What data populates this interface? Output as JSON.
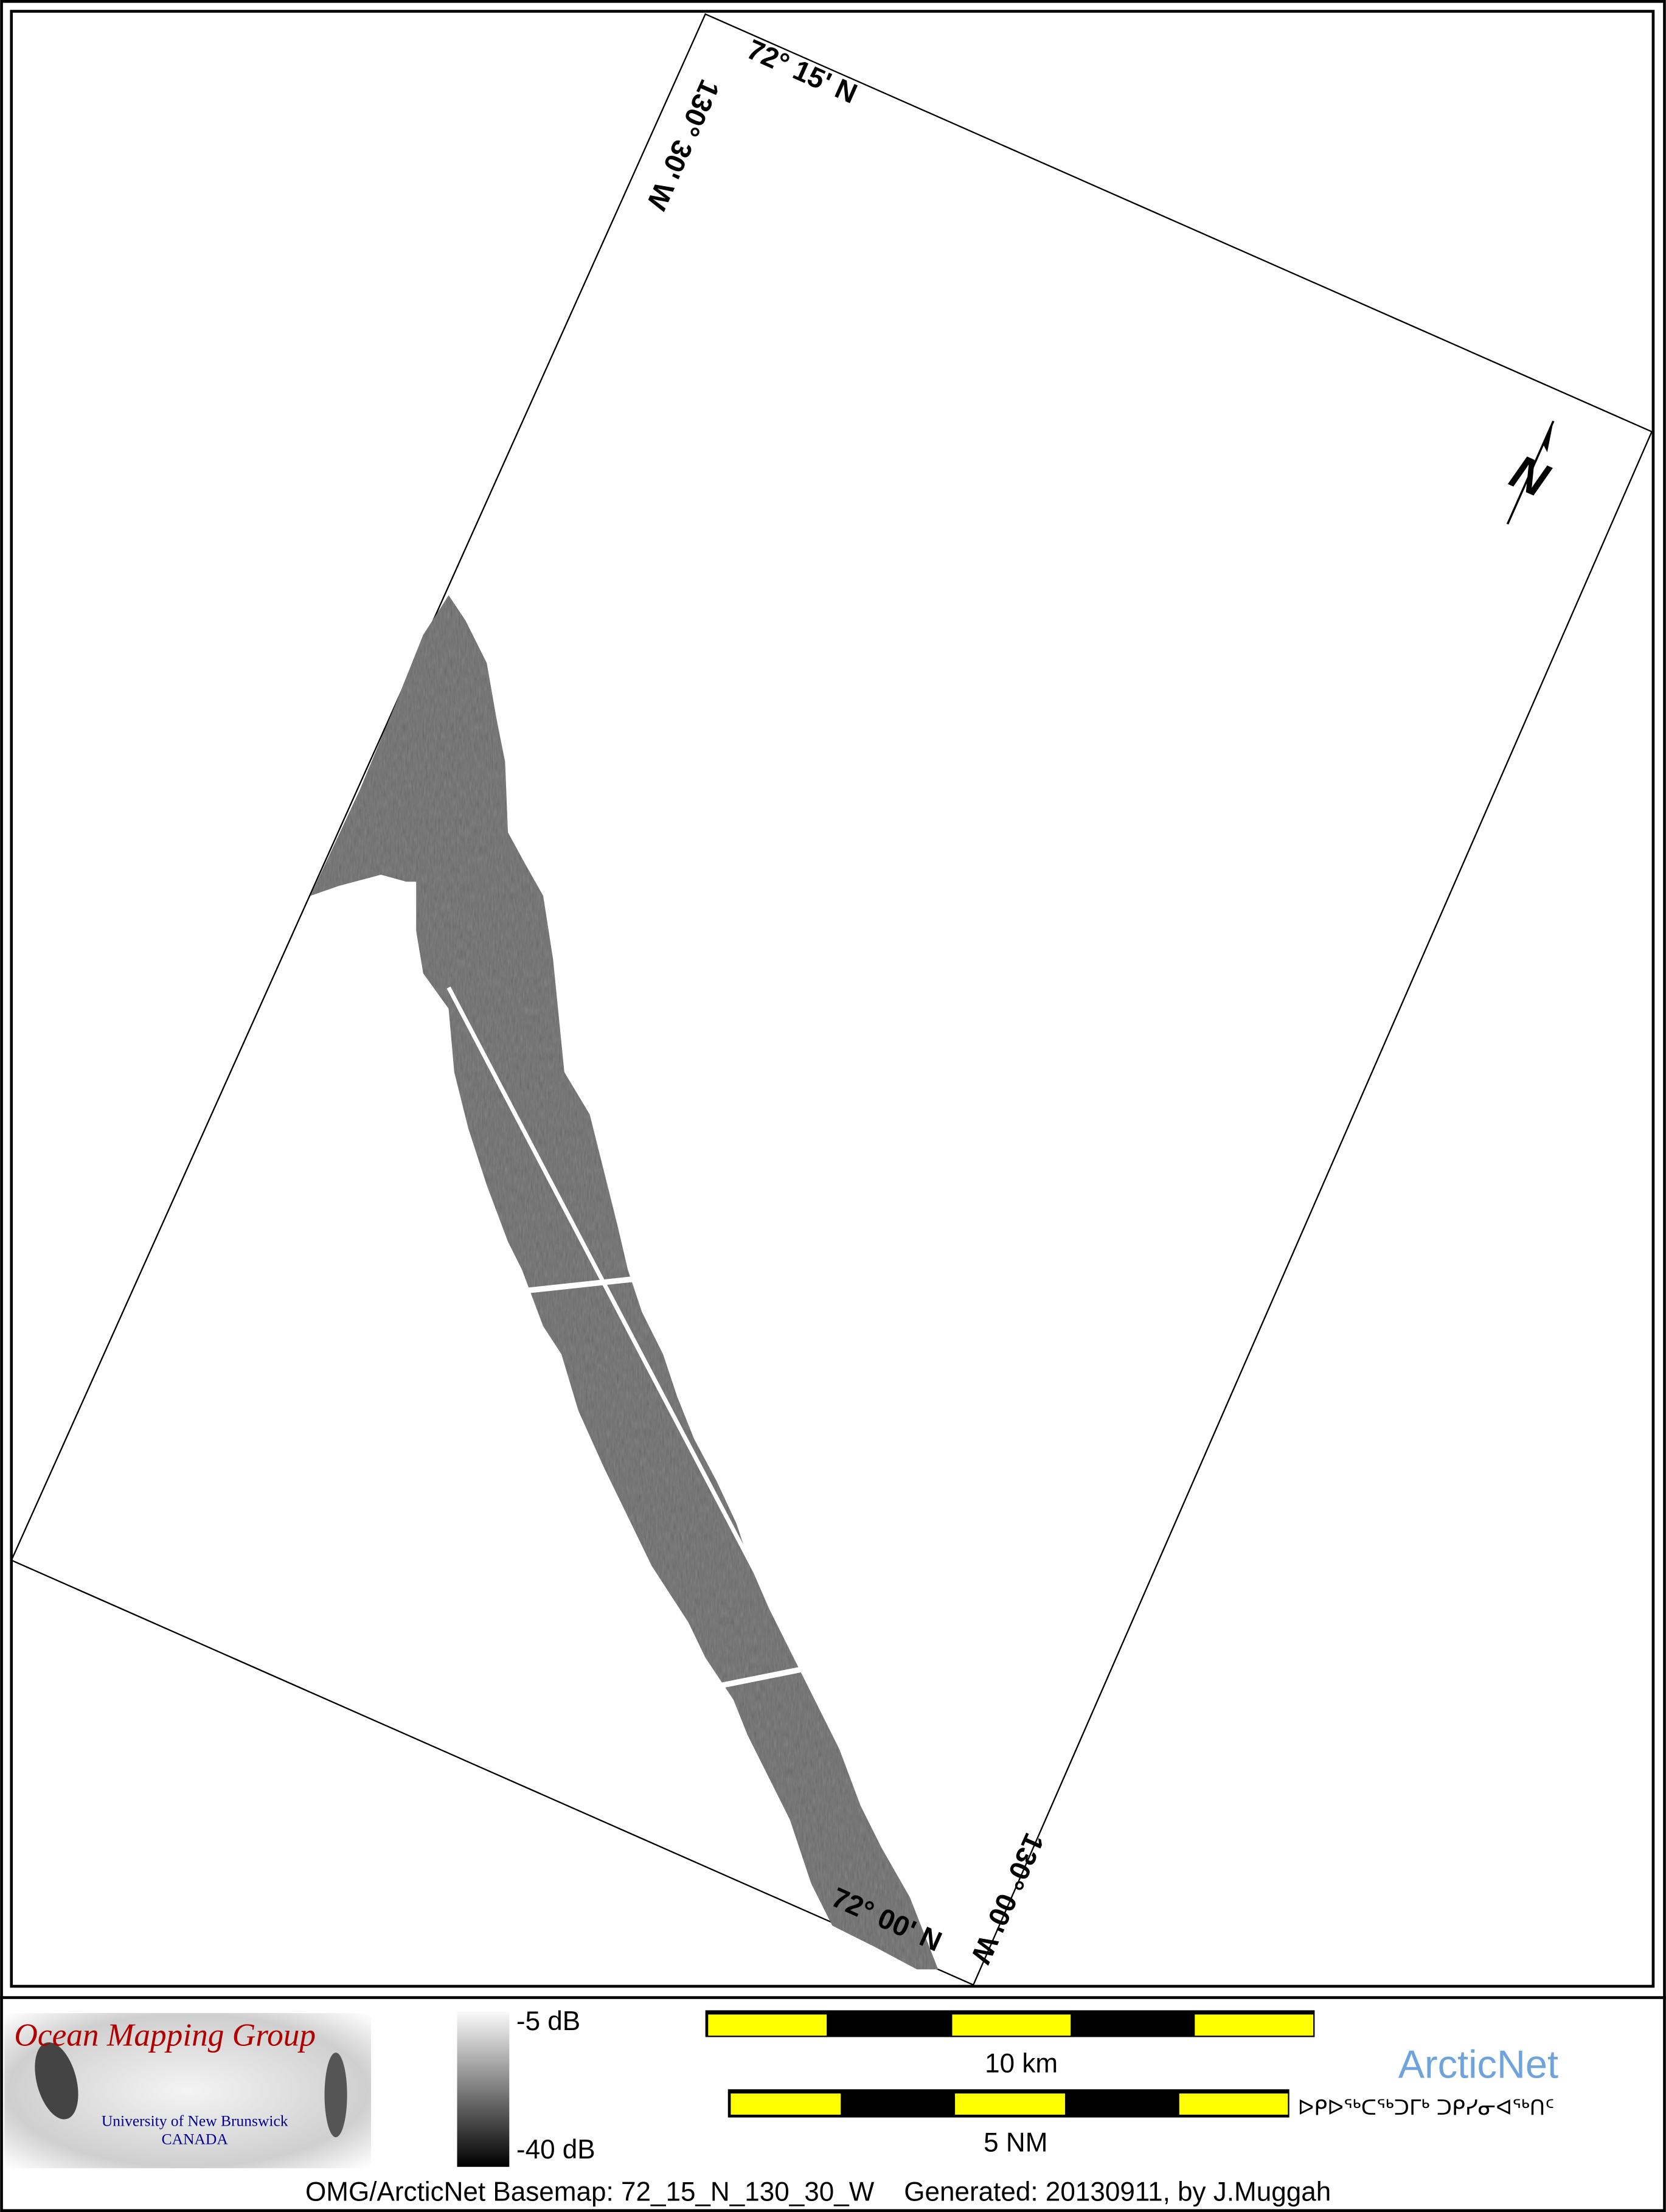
{
  "map": {
    "grid_labels": {
      "top_lat": "72° 15' N",
      "left_lon": "130° 30' W",
      "bottom_lat": "72° 00' N",
      "right_lon": "130° 00' W"
    },
    "north_arrow_label": "N",
    "backscatter_colormap": "grayscale"
  },
  "legend": {
    "logo": {
      "title": "Ocean Mapping Group",
      "line1": "University of New Brunswick",
      "line2": "CANADA",
      "title_color": "#b00000",
      "sub_color": "#00008b"
    },
    "colorbar": {
      "max_label": "-5 dB",
      "min_label": "-40 dB",
      "max_value": -5,
      "min_value": -40
    },
    "scalebar_km": {
      "label": "10 km",
      "colors": [
        "#ffff00",
        "#000000"
      ]
    },
    "scalebar_nm": {
      "label": "5 NM"
    },
    "arcticnet": {
      "name": "ArcticNet",
      "inuktitut": "ᐅᑭᐅᖅᑕᖅᑐᒥᒃ ᑐᑭᓯᓂᐊᖅᑎᑦ",
      "color": "#6fa3dc"
    },
    "footer": "OMG/ArcticNet Basemap: 72_15_N_130_30_W    Generated: 20130911, by J.Muggah"
  }
}
